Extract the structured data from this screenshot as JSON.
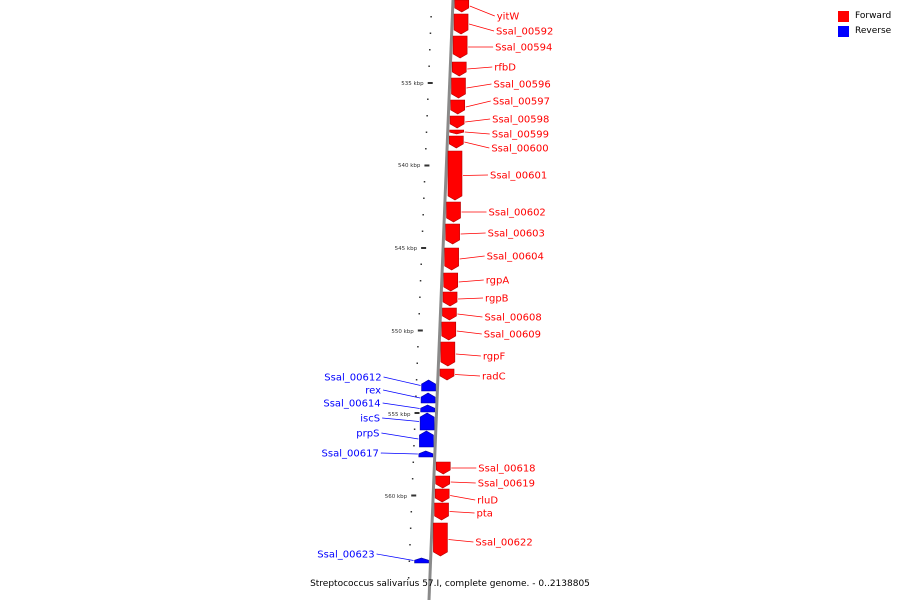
{
  "legend": [
    {
      "label": "Forward",
      "color": "#ff0000"
    },
    {
      "label": "Reverse",
      "color": "#0000ff"
    }
  ],
  "caption": "Streptococcus salivarius 57.I, complete genome. - 0..2138805",
  "colors": {
    "forward": "#ff0000",
    "reverse": "#0000ff",
    "axis": "#999999",
    "ticks": "#333333"
  },
  "scale_labels": [
    "535 kbp",
    "540 kbp",
    "545 kbp",
    "550 kbp",
    "555 kbp",
    "560 kbp"
  ],
  "genes": [
    {
      "name": "yitW",
      "strand": "forward"
    },
    {
      "name": "Ssal_00592",
      "strand": "forward"
    },
    {
      "name": "Ssal_00594",
      "strand": "forward"
    },
    {
      "name": "rfbD",
      "strand": "forward"
    },
    {
      "name": "Ssal_00596",
      "strand": "forward"
    },
    {
      "name": "Ssal_00597",
      "strand": "forward"
    },
    {
      "name": "Ssal_00598",
      "strand": "forward"
    },
    {
      "name": "Ssal_00599",
      "strand": "forward"
    },
    {
      "name": "Ssal_00600",
      "strand": "forward"
    },
    {
      "name": "Ssal_00601",
      "strand": "forward"
    },
    {
      "name": "Ssal_00602",
      "strand": "forward"
    },
    {
      "name": "Ssal_00603",
      "strand": "forward"
    },
    {
      "name": "Ssal_00604",
      "strand": "forward"
    },
    {
      "name": "rgpA",
      "strand": "forward"
    },
    {
      "name": "rgpB",
      "strand": "forward"
    },
    {
      "name": "Ssal_00608",
      "strand": "forward"
    },
    {
      "name": "Ssal_00609",
      "strand": "forward"
    },
    {
      "name": "rgpF",
      "strand": "forward"
    },
    {
      "name": "radC",
      "strand": "forward"
    },
    {
      "name": "Ssal_00612",
      "strand": "reverse"
    },
    {
      "name": "rex",
      "strand": "reverse"
    },
    {
      "name": "Ssal_00614",
      "strand": "reverse"
    },
    {
      "name": "iscS",
      "strand": "reverse"
    },
    {
      "name": "prpS",
      "strand": "reverse"
    },
    {
      "name": "Ssal_00617",
      "strand": "reverse"
    },
    {
      "name": "Ssal_00618",
      "strand": "forward"
    },
    {
      "name": "Ssal_00619",
      "strand": "forward"
    },
    {
      "name": "rluD",
      "strand": "forward"
    },
    {
      "name": "pta",
      "strand": "forward"
    },
    {
      "name": "Ssal_00622",
      "strand": "forward"
    },
    {
      "name": "Ssal_00623",
      "strand": "reverse"
    }
  ]
}
